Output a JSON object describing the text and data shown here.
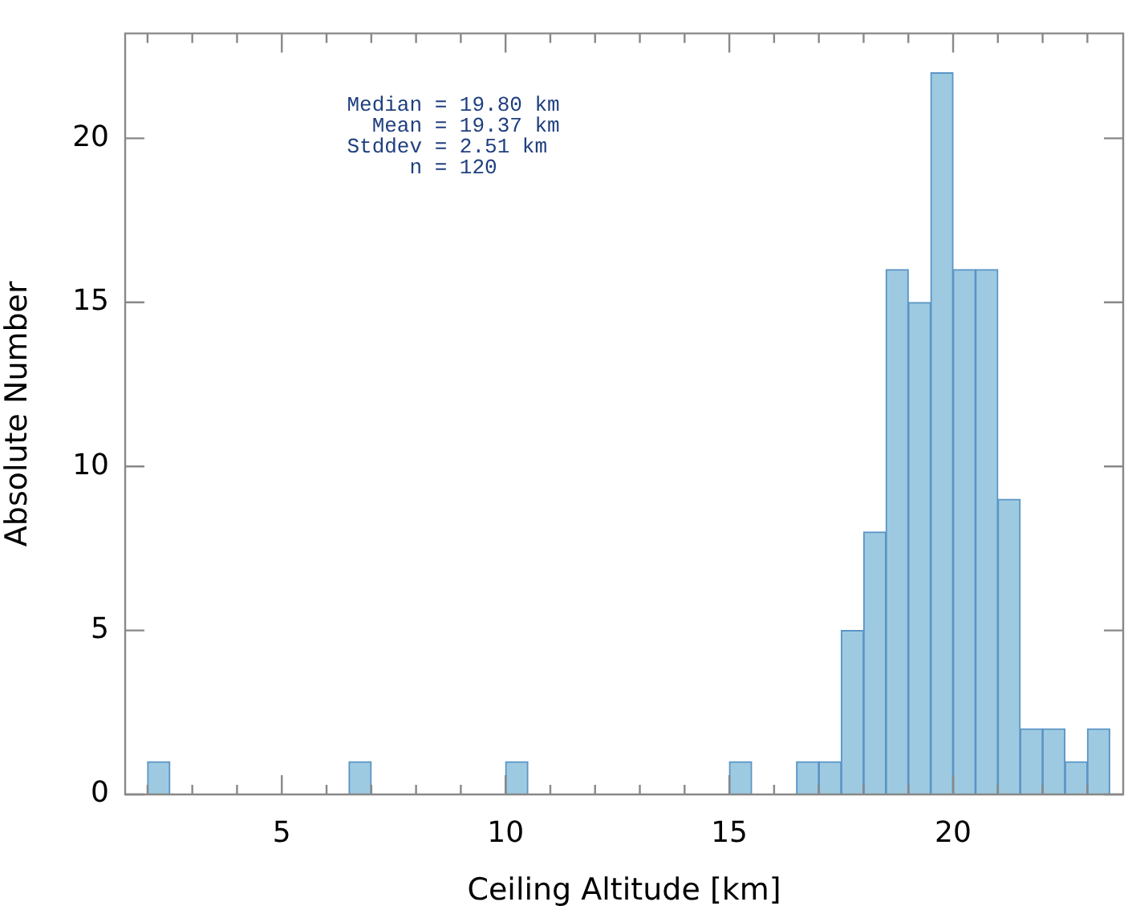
{
  "chart_data": {
    "type": "histogram",
    "xlabel": "Ceiling Altitude [km]",
    "ylabel": "Absolute Number",
    "bins": [
      2.0,
      2.5,
      3.0,
      3.5,
      4.0,
      4.5,
      5.0,
      5.5,
      6.0,
      6.5,
      7.0,
      7.5,
      8.0,
      8.5,
      9.0,
      9.5,
      10.0,
      10.5,
      11.0,
      11.5,
      12.0,
      12.5,
      13.0,
      13.5,
      14.0,
      14.5,
      15.0,
      15.5,
      16.0,
      16.5,
      17.0,
      17.5,
      18.0,
      18.5,
      19.0,
      19.5,
      20.0,
      20.5,
      21.0,
      21.5,
      22.0,
      22.5,
      23.0,
      23.5
    ],
    "values": [
      1,
      0,
      0,
      0,
      0,
      0,
      0,
      0,
      0,
      1,
      0,
      0,
      0,
      0,
      0,
      0,
      1,
      0,
      0,
      0,
      0,
      0,
      0,
      0,
      0,
      0,
      1,
      0,
      0,
      1,
      1,
      5,
      8,
      16,
      15,
      22,
      16,
      16,
      9,
      2,
      2,
      1,
      2
    ],
    "color": "#9ecae1",
    "xlim": [
      1.5,
      23.8
    ],
    "ylim": [
      0,
      23.2
    ],
    "xticks": [
      {
        "value": 2,
        "label": null
      },
      {
        "value": 3,
        "label": null
      },
      {
        "value": 4,
        "label": null
      },
      5,
      {
        "value": 6,
        "label": null
      },
      {
        "value": 7,
        "label": null
      },
      {
        "value": 8,
        "label": null
      },
      {
        "value": 9,
        "label": null
      },
      10,
      {
        "value": 11,
        "label": null
      },
      {
        "value": 12,
        "label": null
      },
      {
        "value": 13,
        "label": null
      },
      {
        "value": 14,
        "label": null
      },
      15,
      {
        "value": 16,
        "label": null
      },
      {
        "value": 17,
        "label": null
      },
      {
        "value": 18,
        "label": null
      },
      {
        "value": 19,
        "label": null
      },
      20,
      {
        "value": 21,
        "label": null
      },
      {
        "value": 22,
        "label": null
      },
      {
        "value": 23,
        "label": null
      }
    ],
    "yticks": [
      0,
      5,
      10,
      15,
      20
    ],
    "annotations": [
      "Median = 19.80 km",
      "Mean = 19.37 km",
      "Stddev = 2.51 km",
      "n = 120"
    ],
    "grid": false,
    "legend": false
  }
}
